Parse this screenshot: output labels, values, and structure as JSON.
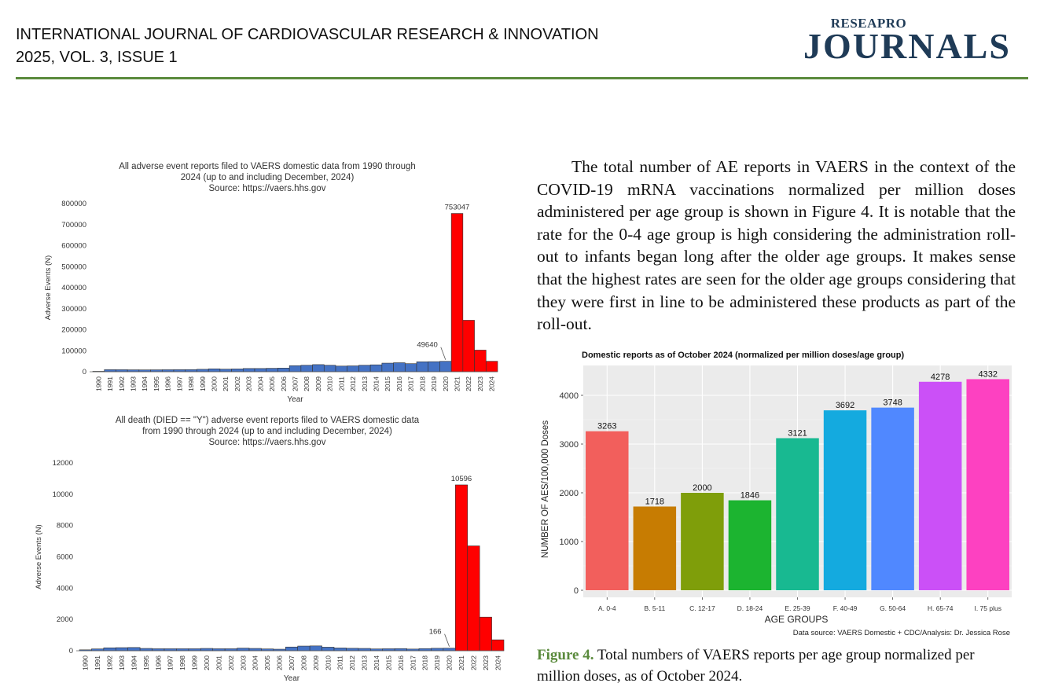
{
  "header": {
    "journal_name": "INTERNATIONAL JOURNAL OF CARDIOVASCULAR RESEARCH & INNOVATION",
    "issue": "2025, VOL. 3, ISSUE 1",
    "logo_top": "RESEAPRO",
    "logo_main": "JOURNALS"
  },
  "body_text": "The total number of AE reports in VAERS in the context of the COVID-19 mRNA vaccinations normalized per million doses administered per age group is shown in Figure 4. It is notable that the rate for the 0-4 age group is high considering the administration roll-out to infants began long after the older age groups. It makes sense that the highest rates are seen for the older age groups considering that they were first in line to be administered these products as part of the roll-out.",
  "caption": {
    "label": "Figure 4.",
    "text": " Total numbers of VAERS reports per age group normalized per million doses, as of October 2024."
  },
  "colors": {
    "accent": "#5a8a3c",
    "blue": "#4472c4",
    "red": "#ff0000"
  },
  "chart_data": [
    {
      "type": "bar",
      "title_lines": [
        "All adverse event reports filed to VAERS domestic data from 1990 through",
        "2024 (up to and including December, 2024)",
        "Source: https://vaers.hhs.gov"
      ],
      "xlabel": "Year",
      "ylabel": "Adverse Events (N)",
      "ylim": [
        0,
        800000
      ],
      "yticks": [
        "0",
        "100000",
        "200000",
        "300000",
        "400000",
        "500000",
        "600000",
        "700000",
        "800000"
      ],
      "categories": [
        "1990",
        "1991",
        "1992",
        "1993",
        "1994",
        "1995",
        "1996",
        "1997",
        "1998",
        "1999",
        "2000",
        "2001",
        "2002",
        "2003",
        "2004",
        "2005",
        "2006",
        "2007",
        "2008",
        "2009",
        "2010",
        "2011",
        "2012",
        "2013",
        "2014",
        "2015",
        "2016",
        "2017",
        "2018",
        "2019",
        "2020",
        "2021",
        "2022",
        "2023",
        "2024"
      ],
      "values": [
        2000,
        10000,
        9800,
        9300,
        9100,
        9300,
        9700,
        10000,
        10300,
        11800,
        14000,
        12500,
        13500,
        15500,
        15500,
        16500,
        17500,
        29000,
        31000,
        34000,
        31000,
        27000,
        28000,
        31000,
        33000,
        41000,
        43000,
        38500,
        47500,
        48000,
        49640,
        753047,
        245000,
        103000,
        50000
      ],
      "highlight_from_index": 31,
      "annotations": [
        "753047",
        "49640"
      ]
    },
    {
      "type": "bar",
      "title_lines": [
        "All death (DIED == \"Y\") adverse event reports filed to VAERS domestic data",
        "from 1990 through 2024 (up to and including December, 2024)",
        "Source: https://vaers.hhs.gov"
      ],
      "xlabel": "Year",
      "ylabel": "Adverse Events (N)",
      "ylim": [
        0,
        12000
      ],
      "yticks": [
        "0",
        "2000",
        "4000",
        "6000",
        "8000",
        "10000",
        "12000"
      ],
      "categories": [
        "1990",
        "1991",
        "1992",
        "1993",
        "1994",
        "1995",
        "1996",
        "1997",
        "1998",
        "1999",
        "2000",
        "2001",
        "2002",
        "2003",
        "2004",
        "2005",
        "2006",
        "2007",
        "2008",
        "2009",
        "2010",
        "2011",
        "2012",
        "2013",
        "2014",
        "2015",
        "2016",
        "2017",
        "2018",
        "2019",
        "2020",
        "2021",
        "2022",
        "2023",
        "2024"
      ],
      "values": [
        60,
        120,
        190,
        200,
        210,
        150,
        130,
        130,
        130,
        130,
        150,
        130,
        130,
        170,
        150,
        120,
        100,
        240,
        300,
        310,
        230,
        180,
        160,
        150,
        120,
        130,
        140,
        110,
        140,
        160,
        166,
        10596,
        6700,
        2150,
        700
      ],
      "highlight_from_index": 31,
      "annotations": [
        "10596",
        "166"
      ]
    },
    {
      "type": "bar",
      "title": "Domestic reports as of October 2024 (normalized per million doses/age group)",
      "xlabel": "AGE GROUPS",
      "ylabel": "NUMBER OF AES/100,000 Doses",
      "ylim": [
        0,
        4500
      ],
      "yticks": [
        "0",
        "1000",
        "2000",
        "3000",
        "4000"
      ],
      "categories": [
        "A. 0-4",
        "B. 5-11",
        "C. 12-17",
        "D. 18-24",
        "E. 25-39",
        "F. 40-49",
        "G. 50-64",
        "H. 65-74",
        "I. 75 plus"
      ],
      "values": [
        3263,
        1718,
        2000,
        1846,
        3121,
        3692,
        3748,
        4278,
        4332
      ],
      "bar_colors": [
        "#f25f5c",
        "#c77c02",
        "#7f9e0a",
        "#1cb430",
        "#18b991",
        "#14aadf",
        "#5088ff",
        "#cb50f7",
        "#fd41c1"
      ],
      "source": "Data source: VAERS Domestic + CDC/Analysis: Dr. Jessica Rose"
    }
  ]
}
